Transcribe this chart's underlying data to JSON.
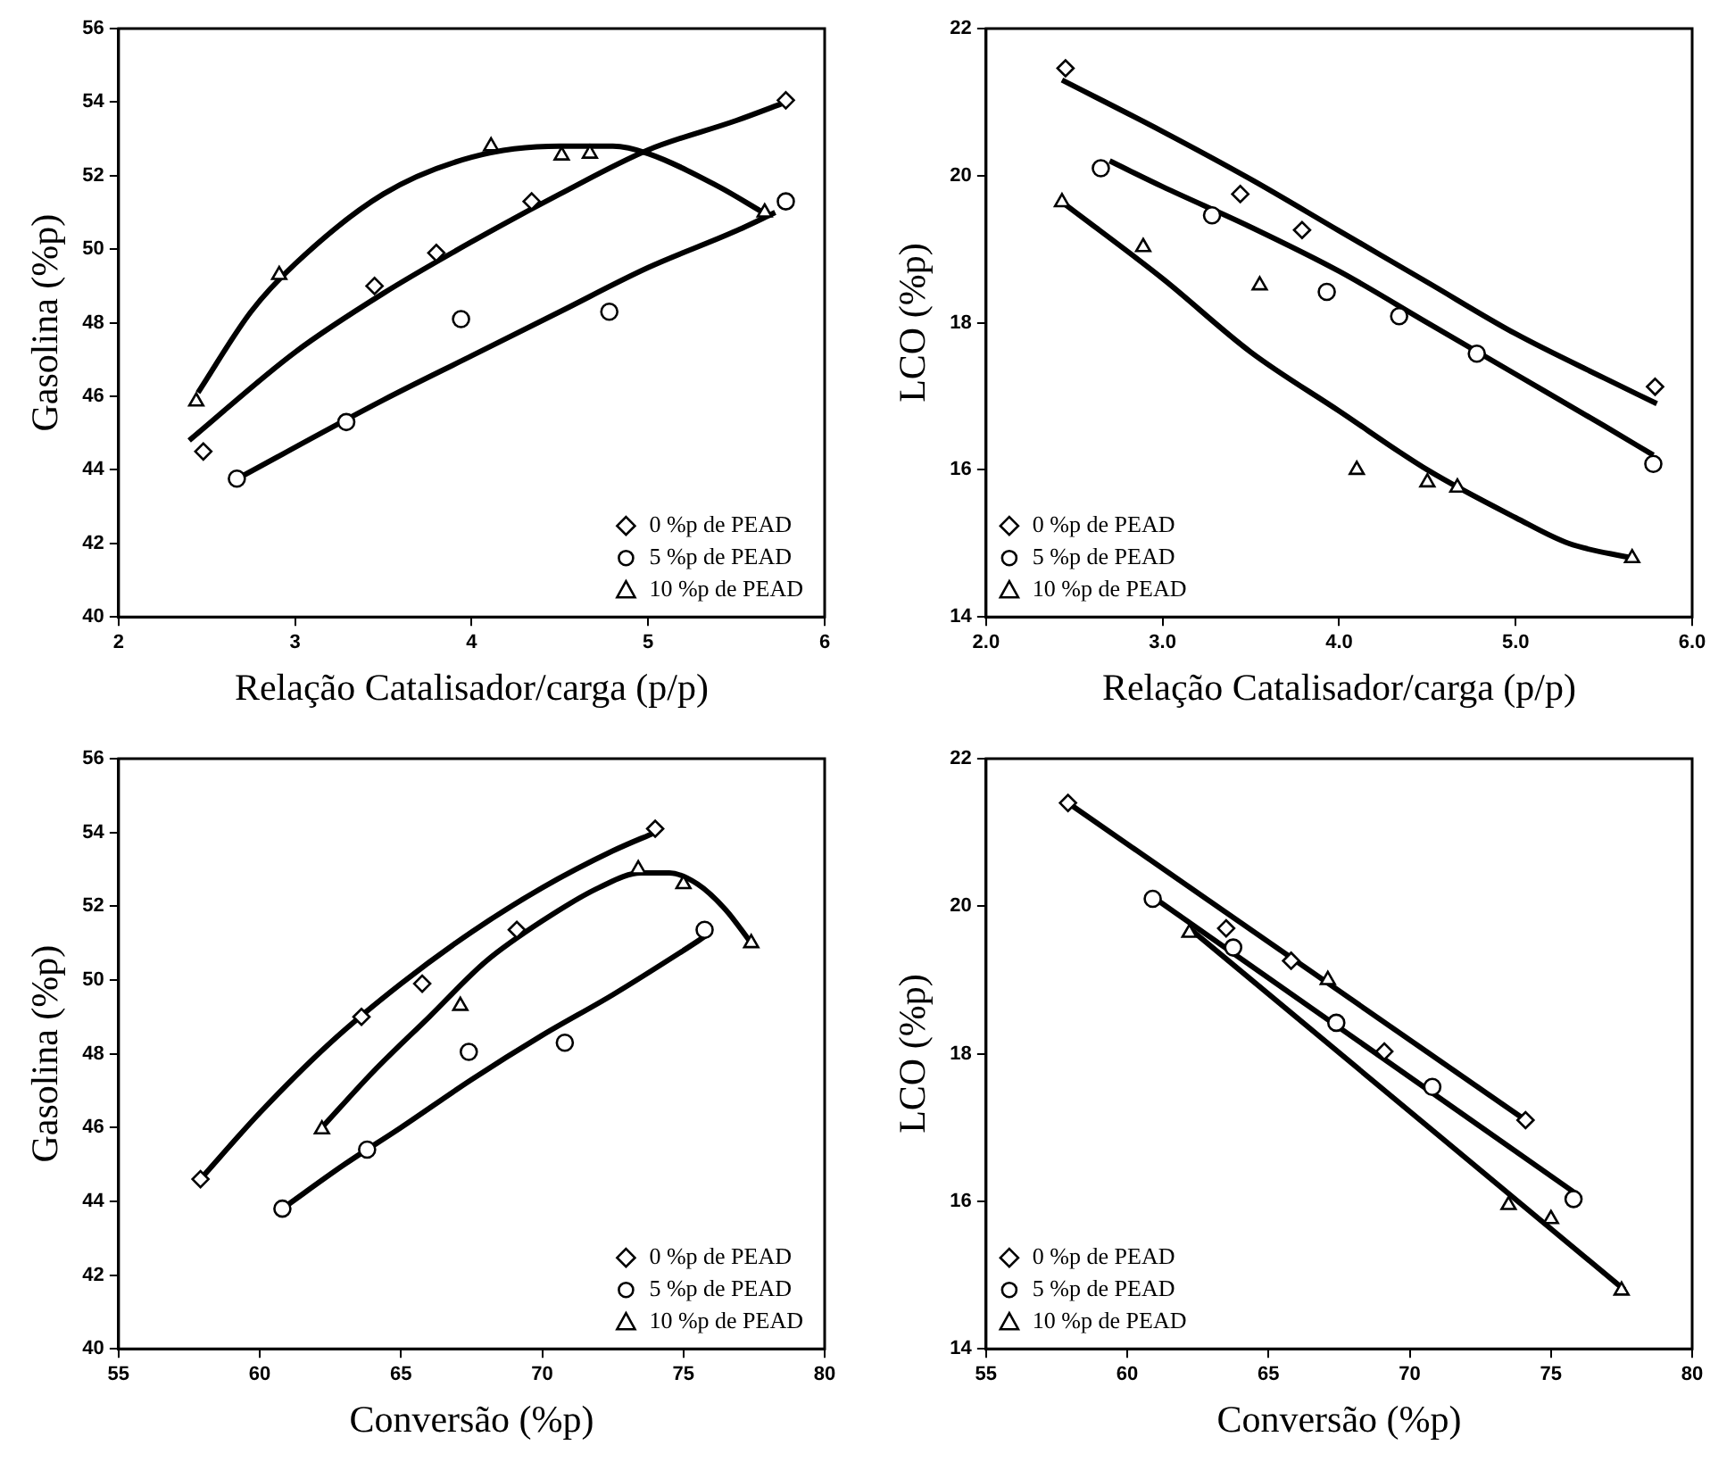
{
  "chart_data": [
    {
      "type": "scatter",
      "xlabel": "Relação Catalisador/carga (p/p)",
      "ylabel": "Gasolina (%p)",
      "xlim": [
        2,
        6
      ],
      "ylim": [
        40,
        56
      ],
      "xticks": [
        2,
        3,
        4,
        5,
        6
      ],
      "yticks": [
        40,
        42,
        44,
        46,
        48,
        50,
        52,
        54,
        56
      ],
      "grid": false,
      "legend": "bottom right",
      "series": [
        {
          "name": "0 %p de PEAD",
          "color": "#000000",
          "marker": "diamond",
          "x": [
            2.48,
            3.45,
            3.8,
            4.34,
            5.78
          ],
          "values": [
            44.5,
            49.0,
            49.9,
            51.3,
            54.05
          ]
        },
        {
          "name": "5 %p de PEAD",
          "color": "#000000",
          "marker": "circle",
          "x": [
            2.67,
            3.29,
            3.94,
            4.78,
            5.78
          ],
          "values": [
            43.76,
            45.3,
            48.1,
            48.3,
            51.3
          ]
        },
        {
          "name": "10 %p de PEAD",
          "color": "#000000",
          "marker": "triangle",
          "x": [
            2.44,
            2.91,
            4.11,
            4.51,
            4.67,
            5.66
          ],
          "values": [
            45.86,
            49.3,
            52.8,
            52.55,
            52.6,
            51.0
          ]
        },
        {
          "type": "line",
          "color": "#000000",
          "marker": "none",
          "x": [
            2.4,
            3,
            3.5,
            4,
            4.5,
            5,
            5.5,
            5.78
          ],
          "values": [
            44.8,
            47.2,
            48.8,
            50.2,
            51.5,
            52.7,
            53.5,
            54.0
          ]
        },
        {
          "type": "line",
          "color": "#000000",
          "marker": "none",
          "x": [
            2.65,
            3.5,
            4,
            4.5,
            5,
            5.5,
            5.72
          ],
          "values": [
            43.7,
            45.9,
            47.1,
            48.3,
            49.5,
            50.5,
            51.0
          ]
        },
        {
          "type": "line",
          "color": "#000000",
          "marker": "none",
          "x": [
            2.45,
            2.75,
            3,
            3.5,
            4,
            4.5,
            4.8,
            5,
            5.4,
            5.65
          ],
          "values": [
            46.1,
            48.3,
            49.6,
            51.5,
            52.5,
            52.8,
            52.8,
            52.6,
            51.7,
            51.0
          ]
        }
      ]
    },
    {
      "type": "scatter",
      "xlabel": "Relação Catalisador/carga (p/p)",
      "ylabel": "LCO (%p)",
      "xlim": [
        2,
        6
      ],
      "ylim": [
        14,
        22
      ],
      "xticks": [
        {
          "value": 2,
          "label": "2.0"
        },
        {
          "value": 3,
          "label": "3.0"
        },
        {
          "value": 4,
          "label": "4.0"
        },
        {
          "value": 5,
          "label": "5.0"
        },
        {
          "value": 6,
          "label": "6.0"
        }
      ],
      "yticks": [
        14,
        16,
        18,
        20,
        22
      ],
      "grid": false,
      "legend": "bottom left",
      "series": [
        {
          "name": "0 %p de PEAD",
          "color": "#000000",
          "marker": "diamond",
          "x": [
            2.45,
            3.44,
            3.79,
            5.79
          ],
          "values": [
            21.46,
            19.75,
            19.26,
            17.13
          ]
        },
        {
          "name": "5 %p de PEAD",
          "color": "#000000",
          "marker": "circle",
          "x": [
            2.65,
            3.28,
            3.93,
            4.34,
            4.78,
            5.78
          ],
          "values": [
            20.1,
            19.46,
            18.42,
            18.09,
            17.58,
            16.08
          ]
        },
        {
          "name": "10 %p de PEAD",
          "color": "#000000",
          "marker": "triangle",
          "x": [
            2.43,
            2.89,
            3.55,
            4.1,
            4.5,
            4.67,
            5.66
          ],
          "values": [
            19.64,
            19.03,
            18.51,
            16.0,
            15.83,
            15.76,
            14.8
          ]
        },
        {
          "type": "line",
          "color": "#000000",
          "marker": "none",
          "x": [
            2.43,
            3,
            3.5,
            4,
            4.5,
            5,
            5.5,
            5.8
          ],
          "values": [
            21.3,
            20.6,
            19.95,
            19.25,
            18.55,
            17.85,
            17.25,
            16.9
          ]
        },
        {
          "type": "line",
          "color": "#000000",
          "marker": "none",
          "x": [
            2.7,
            3,
            3.5,
            4,
            4.5,
            5,
            5.5,
            5.78
          ],
          "values": [
            20.2,
            19.85,
            19.3,
            18.7,
            18.0,
            17.3,
            16.6,
            16.2
          ]
        },
        {
          "type": "line",
          "color": "#000000",
          "marker": "none",
          "x": [
            2.43,
            3,
            3.5,
            4,
            4.5,
            5,
            5.3,
            5.66
          ],
          "values": [
            19.64,
            18.6,
            17.6,
            16.8,
            16.0,
            15.35,
            15.0,
            14.8
          ]
        }
      ]
    },
    {
      "type": "scatter",
      "xlabel": "Conversão (%p)",
      "ylabel": "Gasolina (%p)",
      "xlim": [
        55,
        80
      ],
      "ylim": [
        40,
        56
      ],
      "xticks": [
        55,
        60,
        65,
        70,
        75,
        80
      ],
      "yticks": [
        40,
        42,
        44,
        46,
        48,
        50,
        52,
        54,
        56
      ],
      "grid": false,
      "legend": "bottom right",
      "series": [
        {
          "name": "0 %p de PEAD",
          "color": "#000000",
          "marker": "diamond",
          "x": [
            57.9,
            63.6,
            65.75,
            69.1,
            74.0
          ],
          "values": [
            44.6,
            49.0,
            49.9,
            51.36,
            54.1
          ]
        },
        {
          "name": "5 %p de PEAD",
          "color": "#000000",
          "marker": "circle",
          "x": [
            60.8,
            63.8,
            67.4,
            70.8,
            75.75
          ],
          "values": [
            43.8,
            45.4,
            48.05,
            48.3,
            51.36
          ]
        },
        {
          "name": "10 %p de PEAD",
          "color": "#000000",
          "marker": "triangle",
          "x": [
            62.2,
            67.1,
            73.4,
            75.0,
            77.4
          ],
          "values": [
            45.95,
            49.3,
            53.0,
            52.6,
            51.0
          ]
        },
        {
          "type": "line",
          "color": "#000000",
          "marker": "none",
          "x": [
            57.9,
            60,
            62.5,
            65,
            67.5,
            70,
            72.5,
            74
          ],
          "values": [
            44.6,
            46.4,
            48.3,
            49.9,
            51.3,
            52.5,
            53.5,
            54.0
          ]
        },
        {
          "type": "line",
          "color": "#000000",
          "marker": "none",
          "x": [
            60.8,
            63,
            65,
            67.5,
            70,
            72.5,
            75,
            75.8
          ],
          "values": [
            43.8,
            45.0,
            46.0,
            47.3,
            48.5,
            49.6,
            50.8,
            51.2
          ]
        },
        {
          "type": "line",
          "color": "#000000",
          "marker": "none",
          "x": [
            62.2,
            64,
            66,
            68,
            70,
            72,
            73.5,
            74.5,
            75.5,
            76.5,
            77.4
          ],
          "values": [
            46.0,
            47.5,
            49.0,
            50.5,
            51.6,
            52.5,
            52.9,
            52.9,
            52.6,
            51.9,
            51.0
          ]
        }
      ]
    },
    {
      "type": "scatter",
      "xlabel": "Conversão (%p)",
      "ylabel": "LCO (%p)",
      "xlim": [
        55,
        80
      ],
      "ylim": [
        14,
        22
      ],
      "xticks": [
        55,
        60,
        65,
        70,
        75,
        80
      ],
      "yticks": [
        14,
        16,
        18,
        20,
        22
      ],
      "grid": false,
      "legend": "bottom left",
      "series": [
        {
          "name": "0 %p de PEAD",
          "color": "#000000",
          "marker": "diamond",
          "x": [
            57.9,
            63.5,
            65.8,
            69.1,
            74.1
          ],
          "values": [
            21.4,
            19.7,
            19.26,
            18.03,
            17.1
          ]
        },
        {
          "name": "5 %p de PEAD",
          "color": "#000000",
          "marker": "circle",
          "x": [
            60.9,
            63.75,
            67.4,
            70.8,
            75.8
          ],
          "values": [
            20.1,
            19.44,
            18.42,
            17.55,
            16.03
          ]
        },
        {
          "name": "10 %p de PEAD",
          "color": "#000000",
          "marker": "triangle",
          "x": [
            62.2,
            67.1,
            73.5,
            75.0,
            77.5
          ],
          "values": [
            19.64,
            19.0,
            15.95,
            15.76,
            14.79
          ]
        },
        {
          "type": "line",
          "color": "#000000",
          "marker": "none",
          "x": [
            57.9,
            74.1
          ],
          "values": [
            21.4,
            17.1
          ]
        },
        {
          "type": "line",
          "color": "#000000",
          "marker": "none",
          "x": [
            61,
            75.9
          ],
          "values": [
            20.1,
            16.1
          ]
        },
        {
          "type": "line",
          "color": "#000000",
          "marker": "none",
          "x": [
            62.2,
            77.6
          ],
          "values": [
            19.7,
            14.8
          ]
        }
      ]
    }
  ]
}
